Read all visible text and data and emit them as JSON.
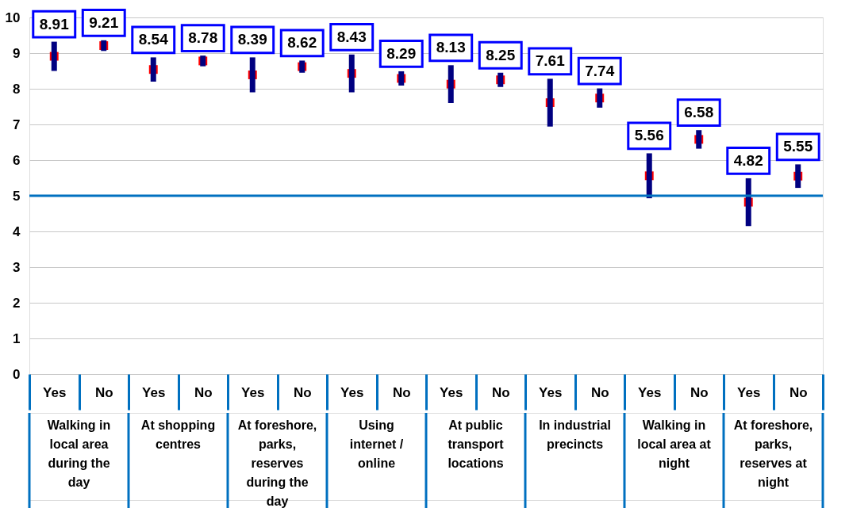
{
  "chart_data": {
    "type": "scatter",
    "categories": [
      "Yes",
      "No",
      "Yes",
      "No",
      "Yes",
      "No",
      "Yes",
      "No",
      "Yes",
      "No",
      "Yes",
      "No",
      "Yes",
      "No",
      "Yes",
      "No"
    ],
    "series": [
      {
        "color": "#ff0000",
        "values": [
          8.91,
          9.21,
          8.54,
          8.78,
          8.39,
          8.62,
          8.43,
          8.29,
          8.13,
          8.25,
          7.61,
          7.74,
          5.56,
          6.58,
          4.82,
          5.55
        ],
        "errors": [
          0.41,
          0.15,
          0.34,
          0.15,
          0.49,
          0.17,
          0.53,
          0.2,
          0.53,
          0.2,
          0.67,
          0.27,
          0.63,
          0.26,
          0.67,
          0.33
        ]
      }
    ],
    "marker": "square",
    "data_labels": true,
    "grid": "y",
    "ylim": [
      0,
      10
    ],
    "yticks": [
      0,
      1,
      2,
      3,
      4,
      5,
      6,
      7,
      8,
      9,
      10
    ],
    "ref_lines": [
      {
        "axis": "y",
        "value": 5,
        "color": "#0070c0"
      }
    ],
    "annotations": [
      "Walking in local area during the day",
      "At shopping centres",
      "At foreshore, parks, reserves during the day",
      "Using internet / online",
      "At public transport locations",
      "In industrial precincts",
      "Walking in local area at night",
      "At foreshore, parks, reserves at night"
    ]
  }
}
